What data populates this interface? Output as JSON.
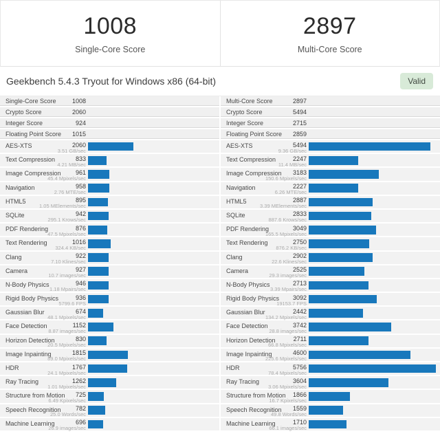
{
  "header": {
    "single": {
      "score": "1008",
      "label": "Single-Core Score"
    },
    "multi": {
      "score": "2897",
      "label": "Multi-Core Score"
    }
  },
  "titlebar": {
    "title": "Geekbench 5.4.3 Tryout for Windows x86 (64-bit)",
    "badge": "Valid"
  },
  "colors": {
    "bar": "#1878bc",
    "badge_bg": "#d8ead8",
    "badge_text": "#424a42"
  },
  "scale_max": 5756,
  "panels": [
    {
      "id": "single-core",
      "summary": [
        {
          "label": "Single-Core Score",
          "value": "1008"
        },
        {
          "label": "Crypto Score",
          "value": "2060"
        },
        {
          "label": "Integer Score",
          "value": "924"
        },
        {
          "label": "Floating Point Score",
          "value": "1015"
        }
      ],
      "tests": [
        {
          "name": "AES-XTS",
          "score": 2060,
          "rate": "3.51 GB/sec"
        },
        {
          "name": "Text Compression",
          "score": 833,
          "rate": "4.21 MB/sec"
        },
        {
          "name": "Image Compression",
          "score": 961,
          "rate": "45.4 Mpixels/sec"
        },
        {
          "name": "Navigation",
          "score": 958,
          "rate": "2.76 MTE/sec"
        },
        {
          "name": "HTML5",
          "score": 895,
          "rate": "1.05 MElements/sec"
        },
        {
          "name": "SQLite",
          "score": 942,
          "rate": "295.1 Krows/sec"
        },
        {
          "name": "PDF Rendering",
          "score": 876,
          "rate": "47.5 Mpixels/sec"
        },
        {
          "name": "Text Rendering",
          "score": 1016,
          "rate": "324.4 KB/sec"
        },
        {
          "name": "Clang",
          "score": 922,
          "rate": "7.10 Klines/sec"
        },
        {
          "name": "Camera",
          "score": 927,
          "rate": "10.7 images/sec"
        },
        {
          "name": "N-Body Physics",
          "score": 946,
          "rate": "1.18 Mpairs/sec"
        },
        {
          "name": "Rigid Body Physics",
          "score": 936,
          "rate": "5799.6 FPS"
        },
        {
          "name": "Gaussian Blur",
          "score": 674,
          "rate": "48.1 Mpixels/sec"
        },
        {
          "name": "Face Detection",
          "score": 1152,
          "rate": "8.87 images/sec"
        },
        {
          "name": "Horizon Detection",
          "score": 830,
          "rate": "20.5 Mpixels/sec"
        },
        {
          "name": "Image Inpainting",
          "score": 1815,
          "rate": "89.0 Mpixels/sec"
        },
        {
          "name": "HDR",
          "score": 1767,
          "rate": "24.1 Mpixels/sec"
        },
        {
          "name": "Ray Tracing",
          "score": 1262,
          "rate": "1.01 Mpixels/sec"
        },
        {
          "name": "Structure from Motion",
          "score": 725,
          "rate": "6.49 Kpixels/sec"
        },
        {
          "name": "Speech Recognition",
          "score": 782,
          "rate": "25.0 Words/sec"
        },
        {
          "name": "Machine Learning",
          "score": 696,
          "rate": "26.9 images/sec"
        }
      ]
    },
    {
      "id": "multi-core",
      "summary": [
        {
          "label": "Multi-Core Score",
          "value": "2897"
        },
        {
          "label": "Crypto Score",
          "value": "5494"
        },
        {
          "label": "Integer Score",
          "value": "2715"
        },
        {
          "label": "Floating Point Score",
          "value": "2859"
        }
      ],
      "tests": [
        {
          "name": "AES-XTS",
          "score": 5494,
          "rate": "9.36 GB/sec"
        },
        {
          "name": "Text Compression",
          "score": 2247,
          "rate": "11.4 MB/sec"
        },
        {
          "name": "Image Compression",
          "score": 3183,
          "rate": "150.6 Mpixels/sec"
        },
        {
          "name": "Navigation",
          "score": 2227,
          "rate": "6.26 MTE/sec"
        },
        {
          "name": "HTML5",
          "score": 2887,
          "rate": "3.39 MElements/sec"
        },
        {
          "name": "SQLite",
          "score": 2833,
          "rate": "887.6 Krows/sec"
        },
        {
          "name": "PDF Rendering",
          "score": 3049,
          "rate": "165.5 Mpixels/sec"
        },
        {
          "name": "Text Rendering",
          "score": 2750,
          "rate": "876.2 KB/sec"
        },
        {
          "name": "Clang",
          "score": 2902,
          "rate": "22.6 Klines/sec"
        },
        {
          "name": "Camera",
          "score": 2525,
          "rate": "29.3 images/sec"
        },
        {
          "name": "N-Body Physics",
          "score": 2713,
          "rate": "3.39 Mpairs/sec"
        },
        {
          "name": "Rigid Body Physics",
          "score": 3092,
          "rate": "19153.7 FPS"
        },
        {
          "name": "Gaussian Blur",
          "score": 2442,
          "rate": "134.2 Mpixels/sec"
        },
        {
          "name": "Face Detection",
          "score": 3742,
          "rate": "28.8 images/sec"
        },
        {
          "name": "Horizon Detection",
          "score": 2711,
          "rate": "66.8 Mpixels/sec"
        },
        {
          "name": "Image Inpainting",
          "score": 4600,
          "rate": "225.6 Mpixels/sec"
        },
        {
          "name": "HDR",
          "score": 5756,
          "rate": "78.4 Mpixels/sec"
        },
        {
          "name": "Ray Tracing",
          "score": 3604,
          "rate": "3.06 Mpixels/sec"
        },
        {
          "name": "Structure from Motion",
          "score": 1866,
          "rate": "16.7 Kpixels/sec"
        },
        {
          "name": "Speech Recognition",
          "score": 1559,
          "rate": "49.8 Words/sec"
        },
        {
          "name": "Machine Learning",
          "score": 1710,
          "rate": "66.1 images/sec"
        }
      ]
    }
  ]
}
